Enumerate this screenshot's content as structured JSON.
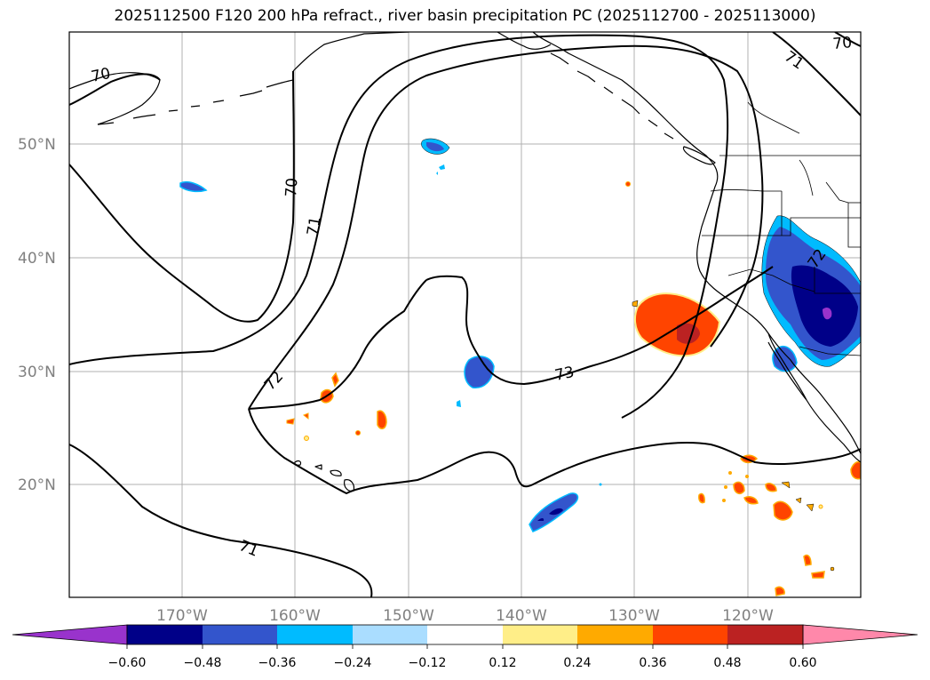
{
  "title": "2025112500 F120 200 hPa refract., river basin precipitation PC (2025112700 - 2025113000)",
  "map": {
    "lon_labels": [
      "170°W",
      "160°W",
      "150°W",
      "140°W",
      "130°W",
      "120°W"
    ],
    "lat_labels": [
      "50°N",
      "40°N",
      "30°N",
      "20°N"
    ],
    "contour_labels": [
      "70",
      "70",
      "71",
      "71",
      "72",
      "72",
      "73",
      "71",
      "70",
      "72"
    ]
  },
  "colorbar": {
    "tick_labels": [
      "−0.60",
      "−0.48",
      "−0.36",
      "−0.24",
      "−0.12",
      "0.12",
      "0.24",
      "0.36",
      "0.48",
      "0.60"
    ],
    "under_color": "#9933cc",
    "over_color": "#ff88aa",
    "colors": [
      "#000088",
      "#3355cc",
      "#00bbff",
      "#aaddff",
      "#ffffff",
      "#ffee88",
      "#ffaa00",
      "#ff4400",
      "#bb2222"
    ]
  }
}
